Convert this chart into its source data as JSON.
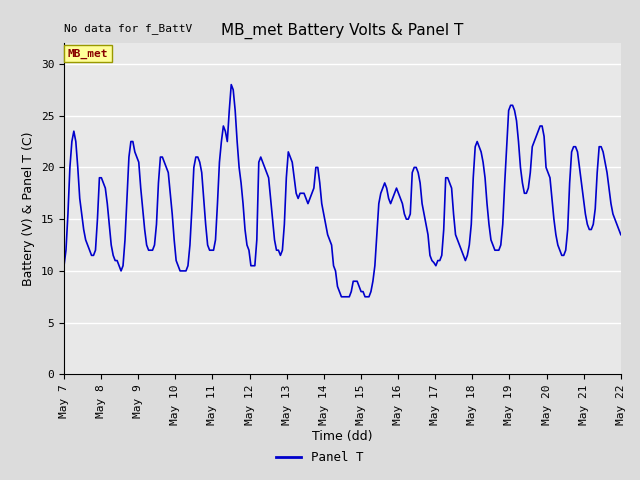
{
  "title": "MB_met Battery Volts & Panel T",
  "no_data_label": "No data for f_BattV",
  "ylabel": "Battery (V) & Panel T (C)",
  "xlabel": "Time (dd)",
  "legend_label": "Panel T",
  "legend_color": "#0000cc",
  "line_color": "#0000cc",
  "line_width": 1.2,
  "ylim": [
    0,
    32
  ],
  "yticks": [
    0,
    5,
    10,
    15,
    20,
    25,
    30
  ],
  "background_color": "#dcdcdc",
  "plot_bg_color": "#e8e8e8",
  "x_start_day": 7,
  "x_end_day": 22,
  "xtick_days": [
    7,
    8,
    9,
    10,
    11,
    12,
    13,
    14,
    15,
    16,
    17,
    18,
    19,
    20,
    21,
    22
  ],
  "mb_met_box_color": "#ffff99",
  "mb_met_text_color": "#880000",
  "title_fontsize": 11,
  "axis_label_fontsize": 9,
  "tick_fontsize": 8,
  "panel_t_data": [
    10.5,
    12.0,
    15.5,
    20.0,
    22.5,
    23.5,
    22.5,
    20.0,
    17.0,
    15.5,
    14.0,
    13.0,
    12.5,
    12.0,
    11.5,
    11.5,
    12.0,
    15.0,
    19.0,
    19.0,
    18.5,
    18.0,
    16.5,
    14.5,
    12.5,
    11.5,
    11.0,
    11.0,
    10.5,
    10.0,
    10.5,
    13.0,
    17.0,
    21.0,
    22.5,
    22.5,
    21.5,
    21.0,
    20.5,
    18.0,
    16.0,
    14.0,
    12.5,
    12.0,
    12.0,
    12.0,
    12.5,
    14.5,
    18.5,
    21.0,
    21.0,
    20.5,
    20.0,
    19.5,
    17.5,
    15.5,
    13.0,
    11.0,
    10.5,
    10.0,
    10.0,
    10.0,
    10.0,
    10.5,
    12.5,
    16.0,
    20.0,
    21.0,
    21.0,
    20.5,
    19.5,
    17.0,
    14.5,
    12.5,
    12.0,
    12.0,
    12.0,
    13.0,
    16.5,
    20.5,
    22.5,
    24.0,
    23.5,
    22.5,
    25.5,
    28.0,
    27.5,
    25.5,
    22.5,
    20.0,
    18.5,
    16.5,
    14.0,
    12.5,
    12.0,
    10.5,
    10.5,
    10.5,
    13.0,
    20.5,
    21.0,
    20.5,
    20.0,
    19.5,
    19.0,
    17.0,
    15.0,
    13.0,
    12.0,
    12.0,
    11.5,
    12.0,
    14.5,
    19.0,
    21.5,
    21.0,
    20.5,
    19.0,
    17.5,
    17.0,
    17.5,
    17.5,
    17.5,
    17.0,
    16.5,
    17.0,
    17.5,
    18.0,
    20.0,
    20.0,
    18.5,
    16.5,
    15.5,
    14.5,
    13.5,
    13.0,
    12.5,
    10.5,
    10.0,
    8.5,
    8.0,
    7.5,
    7.5,
    7.5,
    7.5,
    7.5,
    8.0,
    9.0,
    9.0,
    9.0,
    8.5,
    8.0,
    8.0,
    7.5,
    7.5,
    7.5,
    8.0,
    9.0,
    10.5,
    13.5,
    16.5,
    17.5,
    18.0,
    18.5,
    18.0,
    17.0,
    16.5,
    17.0,
    17.5,
    18.0,
    17.5,
    17.0,
    16.5,
    15.5,
    15.0,
    15.0,
    15.5,
    19.5,
    20.0,
    20.0,
    19.5,
    18.5,
    16.5,
    15.5,
    14.5,
    13.5,
    11.5,
    11.0,
    10.8,
    10.5,
    11.0,
    11.0,
    11.5,
    14.0,
    19.0,
    19.0,
    18.5,
    18.0,
    15.5,
    13.5,
    13.0,
    12.5,
    12.0,
    11.5,
    11.0,
    11.5,
    12.5,
    14.5,
    19.0,
    22.0,
    22.5,
    22.0,
    21.5,
    20.5,
    19.0,
    16.5,
    14.5,
    13.0,
    12.5,
    12.0,
    12.0,
    12.0,
    12.5,
    14.5,
    18.5,
    22.0,
    25.5,
    26.0,
    26.0,
    25.5,
    24.5,
    22.5,
    20.0,
    18.5,
    17.5,
    17.5,
    18.0,
    19.5,
    22.0,
    22.5,
    23.0,
    23.5,
    24.0,
    24.0,
    23.0,
    20.0,
    19.5,
    19.0,
    17.0,
    15.0,
    13.5,
    12.5,
    12.0,
    11.5,
    11.5,
    12.0,
    14.0,
    18.5,
    21.5,
    22.0,
    22.0,
    21.5,
    20.0,
    18.5,
    17.0,
    15.5,
    14.5,
    14.0,
    14.0,
    14.5,
    16.0,
    19.5,
    22.0,
    22.0,
    21.5,
    20.5,
    19.5,
    18.0,
    16.5,
    15.5,
    15.0,
    14.5,
    14.0,
    13.5
  ]
}
